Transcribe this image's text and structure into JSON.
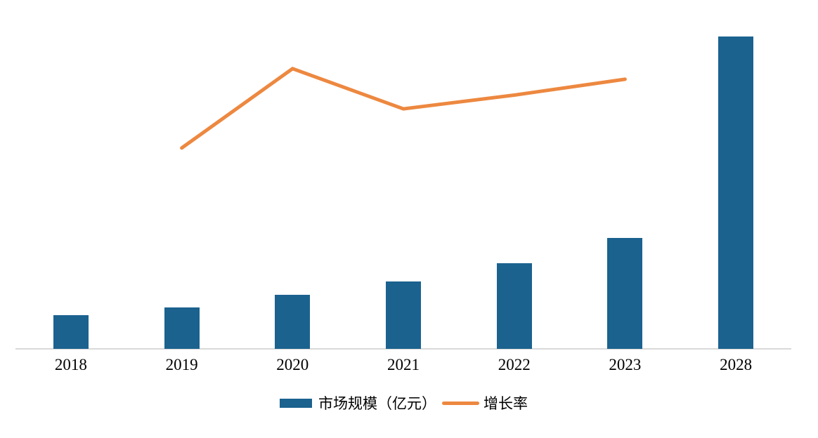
{
  "chart_data": {
    "type": "bar",
    "title": "",
    "xlabel": "",
    "ylabel": "",
    "categories": [
      "2018",
      "2019",
      "2020",
      "2021",
      "2022",
      "2023",
      "2028"
    ],
    "series": [
      {
        "name": "市场规模（亿元）",
        "type": "bar",
        "axis": "primary",
        "color": "#1B628F",
        "values": [
          48,
          59,
          77,
          96,
          122,
          158,
          445
        ]
      },
      {
        "name": "增长率",
        "type": "line",
        "axis": "secondary",
        "unit": "%",
        "color": "#ED8840",
        "values": [
          null,
          23.0,
          30.5,
          26.7,
          28.0,
          29.5,
          null
        ]
      }
    ],
    "primary_ylim": [
      0,
      482
    ],
    "secondary_ylim": [
      4,
      36
    ],
    "grid": false,
    "axis_tick_labels_visible": false,
    "legend_position": "bottom"
  },
  "colors": {
    "bar": "#1B628F",
    "line": "#ED8840",
    "axis_line": "#D9D9D9",
    "text": "#000000",
    "background": "#FFFFFF"
  }
}
